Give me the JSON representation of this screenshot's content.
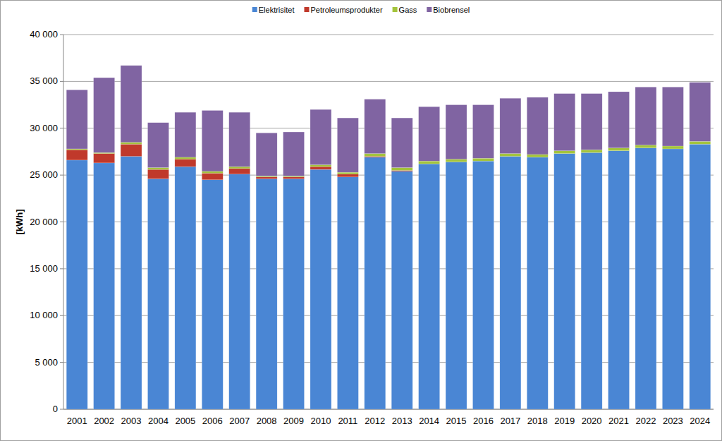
{
  "chart_data": {
    "type": "bar",
    "stacked": true,
    "grid": true,
    "legend": "top",
    "y_label": "[kWh]",
    "categories": [
      "2001",
      "2002",
      "2003",
      "2004",
      "2005",
      "2006",
      "2007",
      "2008",
      "2009",
      "2010",
      "2011",
      "2012",
      "2013",
      "2014",
      "2015",
      "2016",
      "2017",
      "2018",
      "2019",
      "2020",
      "2021",
      "2022",
      "2023",
      "2024"
    ],
    "series": [
      {
        "name": "Elektrisitet",
        "color": "#4a86d4",
        "values": [
          26600,
          26300,
          27000,
          24600,
          25900,
          24500,
          25100,
          24600,
          24600,
          25600,
          24800,
          26900,
          25400,
          26200,
          26400,
          26500,
          27000,
          26900,
          27300,
          27400,
          27600,
          27900,
          27800,
          28300
        ]
      },
      {
        "name": "Petroleumsprodukter",
        "color": "#c0392b",
        "values": [
          1100,
          1000,
          1300,
          1000,
          800,
          700,
          600,
          200,
          200,
          300,
          300,
          100,
          100,
          0,
          0,
          0,
          0,
          0,
          0,
          0,
          0,
          0,
          0,
          0
        ]
      },
      {
        "name": "Gass",
        "color": "#a4c43c",
        "values": [
          100,
          100,
          200,
          200,
          200,
          200,
          200,
          100,
          100,
          200,
          200,
          300,
          300,
          300,
          300,
          300,
          300,
          300,
          300,
          300,
          300,
          300,
          300,
          300
        ]
      },
      {
        "name": "Biobrensel",
        "color": "#8064a2",
        "values": [
          6300,
          8000,
          8200,
          4800,
          4800,
          6500,
          5800,
          4600,
          4700,
          5900,
          5800,
          5800,
          5300,
          5800,
          5800,
          5700,
          5900,
          6100,
          6100,
          6000,
          6000,
          6200,
          6300,
          6300
        ]
      }
    ],
    "ylim": [
      0,
      40000
    ],
    "yticks": [
      0,
      {
        "value": 5000,
        "label": "5 000"
      },
      {
        "value": 10000,
        "label": "10 000"
      },
      {
        "value": 15000,
        "label": "15 000"
      },
      {
        "value": 20000,
        "label": "20 000"
      },
      {
        "value": 25000,
        "label": "25 000"
      },
      {
        "value": 30000,
        "label": "30 000"
      },
      {
        "value": 35000,
        "label": "35 000"
      },
      {
        "value": 40000,
        "label": "40 000"
      }
    ]
  }
}
